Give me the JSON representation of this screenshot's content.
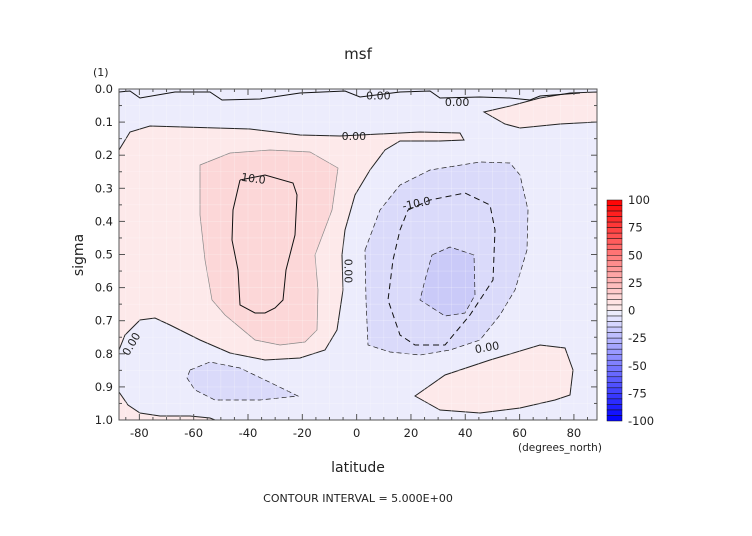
{
  "chart_data": {
    "type": "contour",
    "title": "msf",
    "units_label": "(1)",
    "xlabel": "latitude",
    "xunits": "(degrees_north)",
    "ylabel": "sigma",
    "xlim": [
      -87.5,
      88.5
    ],
    "ylim": [
      0.0,
      1.0
    ],
    "y_inverted": true,
    "xticks": [
      -80,
      -60,
      -40,
      -20,
      0,
      20,
      40,
      60,
      80
    ],
    "xtick_labels": [
      "-80",
      "-60",
      "-40",
      "-20",
      "0",
      "20",
      "40",
      "60",
      "80"
    ],
    "yticks": [
      0.0,
      0.1,
      0.2,
      0.3,
      0.4,
      0.5,
      0.6,
      0.7,
      0.8,
      0.9,
      1.0
    ],
    "ytick_labels": [
      "0.0",
      "0.1",
      "0.2",
      "0.3",
      "0.4",
      "0.5",
      "0.6",
      "0.7",
      "0.8",
      "0.9",
      "1.0"
    ],
    "footer": "CONTOUR INTERVAL = 5.000E+00",
    "contour_interval": 5,
    "background_color": "#ececfc",
    "colorbar": {
      "min": -100,
      "max": 100,
      "step": 5,
      "labels": [
        "100",
        "75",
        "50",
        "25",
        "0",
        "-25",
        "-50",
        "-75",
        "-100"
      ],
      "label_values": [
        100,
        75,
        50,
        25,
        0,
        -25,
        -50,
        -75,
        -100
      ],
      "low_color": "#0000ff",
      "high_color": "#ff0000"
    },
    "regions": [
      {
        "name": "pos-0-5-main",
        "level": [
          0,
          5
        ],
        "color": "#fde9ea",
        "line": "solid",
        "px": [
          [
            119,
            150
          ],
          [
            130,
            132
          ],
          [
            150,
            126
          ],
          [
            250,
            129
          ],
          [
            300,
            135
          ],
          [
            340,
            136
          ],
          [
            420,
            132
          ],
          [
            460,
            133
          ],
          [
            464,
            140
          ],
          [
            440,
            141
          ],
          [
            400,
            141
          ],
          [
            385,
            150
          ],
          [
            370,
            170
          ],
          [
            355,
            195
          ],
          [
            345,
            230
          ],
          [
            342,
            255
          ],
          [
            343,
            290
          ],
          [
            337,
            330
          ],
          [
            325,
            350
          ],
          [
            300,
            358
          ],
          [
            265,
            360
          ],
          [
            230,
            353
          ],
          [
            200,
            340
          ],
          [
            170,
            325
          ],
          [
            155,
            318
          ],
          [
            140,
            320
          ],
          [
            125,
            335
          ],
          [
            119,
            350
          ]
        ]
      },
      {
        "name": "pos-0-5-top-right",
        "level": [
          0,
          5
        ],
        "color": "#fde9ea",
        "line": "solid",
        "px": [
          [
            484,
            112
          ],
          [
            510,
            106
          ],
          [
            540,
            98
          ],
          [
            570,
            93
          ],
          [
            597,
            92
          ],
          [
            597,
            122
          ],
          [
            560,
            124
          ],
          [
            520,
            128
          ],
          [
            505,
            124
          ]
        ]
      },
      {
        "name": "pos-0-5-bottom-left",
        "level": [
          0,
          5
        ],
        "color": "#fde9ea",
        "line": "solid",
        "px": [
          [
            119,
            392
          ],
          [
            128,
            405
          ],
          [
            140,
            413
          ],
          [
            160,
            416
          ],
          [
            190,
            416
          ],
          [
            210,
            418
          ],
          [
            215,
            420
          ],
          [
            119,
            420
          ]
        ]
      },
      {
        "name": "pos-0-5-bottom-right",
        "level": [
          0,
          5
        ],
        "color": "#fde9ea",
        "line": "solid",
        "px": [
          [
            415,
            396
          ],
          [
            445,
            375
          ],
          [
            490,
            360
          ],
          [
            540,
            345
          ],
          [
            565,
            348
          ],
          [
            573,
            370
          ],
          [
            570,
            395
          ],
          [
            555,
            400
          ],
          [
            520,
            408
          ],
          [
            480,
            413
          ],
          [
            440,
            410
          ]
        ]
      },
      {
        "name": "pos-5-10",
        "level": [
          5,
          10
        ],
        "color": "#fcd7d8",
        "line": "thin",
        "px": [
          [
            200,
            165
          ],
          [
            230,
            153
          ],
          [
            270,
            150
          ],
          [
            310,
            152
          ],
          [
            338,
            168
          ],
          [
            332,
            210
          ],
          [
            315,
            255
          ],
          [
            318,
            290
          ],
          [
            317,
            330
          ],
          [
            305,
            342
          ],
          [
            280,
            345
          ],
          [
            255,
            340
          ],
          [
            225,
            315
          ],
          [
            212,
            300
          ],
          [
            205,
            260
          ],
          [
            200,
            215
          ]
        ]
      },
      {
        "name": "neg-5-10-upper",
        "level": [
          -10,
          -5
        ],
        "color": "#dadafa",
        "line": "dashed",
        "px": [
          [
            365,
            250
          ],
          [
            380,
            210
          ],
          [
            400,
            185
          ],
          [
            430,
            170
          ],
          [
            480,
            162
          ],
          [
            510,
            163
          ],
          [
            520,
            175
          ],
          [
            528,
            210
          ],
          [
            527,
            250
          ],
          [
            515,
            290
          ],
          [
            500,
            315
          ],
          [
            480,
            340
          ],
          [
            450,
            350
          ],
          [
            420,
            355
          ],
          [
            390,
            352
          ],
          [
            368,
            345
          ],
          [
            366,
            300
          ]
        ]
      },
      {
        "name": "neg-5-10-lower",
        "level": [
          -10,
          -5
        ],
        "color": "#dadafa",
        "line": "dashed",
        "px": [
          [
            190,
            370
          ],
          [
            210,
            362
          ],
          [
            240,
            368
          ],
          [
            265,
            380
          ],
          [
            298,
            396
          ],
          [
            260,
            400
          ],
          [
            215,
            400
          ],
          [
            195,
            390
          ],
          [
            187,
            378
          ]
        ]
      },
      {
        "name": "neg-15",
        "level": [
          -20,
          -15
        ],
        "color": "#cacaf8",
        "line": "dashed",
        "px": [
          [
            432,
            255
          ],
          [
            450,
            247
          ],
          [
            474,
            255
          ],
          [
            475,
            295
          ],
          [
            465,
            313
          ],
          [
            445,
            316
          ],
          [
            420,
            300
          ],
          [
            425,
            280
          ]
        ]
      }
    ],
    "contour_lines": [
      {
        "name": "contour-pos-10",
        "value": 10,
        "line": "solid",
        "px": [
          [
            240,
            180
          ],
          [
            265,
            175
          ],
          [
            293,
            183
          ],
          [
            297,
            195
          ],
          [
            295,
            235
          ],
          [
            286,
            270
          ],
          [
            283,
            300
          ],
          [
            275,
            308
          ],
          [
            265,
            313
          ],
          [
            255,
            313
          ],
          [
            240,
            305
          ],
          [
            238,
            270
          ],
          [
            232,
            240
          ],
          [
            233,
            210
          ],
          [
            240,
            180
          ]
        ]
      },
      {
        "name": "contour-neg-10",
        "value": -10,
        "line": "dashed",
        "px": [
          [
            408,
            210
          ],
          [
            430,
            200
          ],
          [
            465,
            193
          ],
          [
            490,
            205
          ],
          [
            495,
            230
          ],
          [
            493,
            280
          ],
          [
            470,
            315
          ],
          [
            445,
            345
          ],
          [
            415,
            345
          ],
          [
            400,
            335
          ],
          [
            388,
            300
          ],
          [
            393,
            260
          ],
          [
            400,
            230
          ],
          [
            408,
            210
          ]
        ]
      },
      {
        "name": "contour-zero-top",
        "value": 0,
        "line": "solid",
        "px": [
          [
            119,
            92
          ],
          [
            130,
            91
          ],
          [
            140,
            98
          ],
          [
            175,
            92
          ],
          [
            210,
            92
          ],
          [
            222,
            100
          ],
          [
            260,
            99
          ],
          [
            300,
            93
          ],
          [
            345,
            91
          ],
          [
            360,
            97
          ],
          [
            400,
            92
          ],
          [
            430,
            91
          ],
          [
            440,
            98
          ],
          [
            480,
            97
          ],
          [
            510,
            98
          ],
          [
            530,
            100
          ],
          [
            540,
            96
          ],
          [
            580,
            93
          ]
        ]
      }
    ],
    "contour_labels": [
      {
        "text": "0.00",
        "lat": -1,
        "sigma": 0.142,
        "rot": 0
      },
      {
        "text": "0.00",
        "lat": 8,
        "sigma": 0.02,
        "rot": 0
      },
      {
        "text": "0.00",
        "lat": 37,
        "sigma": 0.04,
        "rot": 0
      },
      {
        "text": "10.0",
        "lat": -38,
        "sigma": 0.27,
        "rot": 8
      },
      {
        "text": "-10.0",
        "lat": 22,
        "sigma": 0.345,
        "rot": -12
      },
      {
        "text": "0.00",
        "lat": -3,
        "sigma": 0.55,
        "rot": 90
      },
      {
        "text": "0.00",
        "lat": -83,
        "sigma": 0.77,
        "rot": -60
      },
      {
        "text": "0.00",
        "lat": 48,
        "sigma": 0.78,
        "rot": -10
      }
    ]
  }
}
